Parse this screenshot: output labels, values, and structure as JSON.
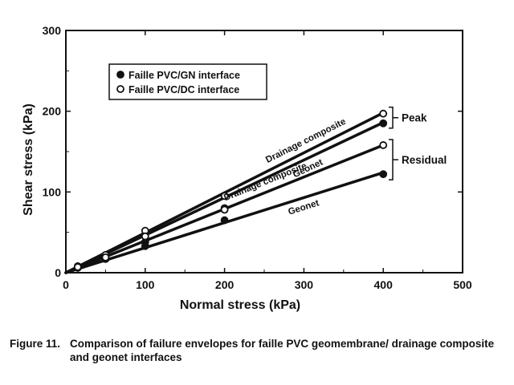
{
  "figure": {
    "label": "Figure 11.",
    "caption": "Comparison of failure envelopes for faille PVC geomembrane/ drainage composite and geonet interfaces"
  },
  "chart_data": {
    "type": "scatter",
    "xlabel": "Normal stress (kPa)",
    "ylabel": "Shear stress (kPa)",
    "xlim": [
      0,
      500
    ],
    "ylim": [
      0,
      300
    ],
    "xticks": [
      0,
      100,
      200,
      300,
      400,
      500
    ],
    "yticks": [
      0,
      100,
      200,
      300
    ],
    "grid": false,
    "legend": {
      "placement": "top-left",
      "entries": [
        {
          "label": "Faille PVC/GN interface",
          "marker": "filled-circle"
        },
        {
          "label": "Faille PVC/DC interface",
          "marker": "open-circle"
        }
      ]
    },
    "series": [
      {
        "name": "Faille PVC/GN interface",
        "marker": "filled-circle",
        "x": [
          15,
          50,
          100,
          200,
          400
        ],
        "y": [
          7,
          20,
          38,
          80,
          185
        ]
      },
      {
        "name": "Faille PVC/DC interface",
        "marker": "open-circle",
        "x": [
          15,
          50,
          100,
          200,
          400
        ],
        "y": [
          8,
          22,
          52,
          95,
          197
        ]
      },
      {
        "name": "Faille PVC/GN interface",
        "marker": "filled-circle",
        "x": [
          15,
          50,
          100,
          200,
          400
        ],
        "y": [
          6,
          17,
          33,
          65,
          122
        ]
      },
      {
        "name": "Faille PVC/DC interface",
        "marker": "open-circle",
        "x": [
          15,
          50,
          100,
          200,
          400
        ],
        "y": [
          7,
          19,
          45,
          78,
          158
        ]
      }
    ],
    "lines": [
      {
        "label": "Drainage composite",
        "x": [
          0,
          400
        ],
        "y": [
          0,
          198
        ]
      },
      {
        "label": "Geonet",
        "x": [
          0,
          400
        ],
        "y": [
          0,
          186
        ]
      },
      {
        "label": "Drainage composite",
        "x": [
          0,
          400
        ],
        "y": [
          0,
          158
        ]
      },
      {
        "label": "Geonet",
        "x": [
          0,
          400
        ],
        "y": [
          0,
          124
        ]
      }
    ],
    "annotations": [
      {
        "text": "Peak",
        "groups_y": [
          186,
          198
        ]
      },
      {
        "text": "Residual",
        "groups_y": [
          122,
          158
        ]
      }
    ]
  }
}
